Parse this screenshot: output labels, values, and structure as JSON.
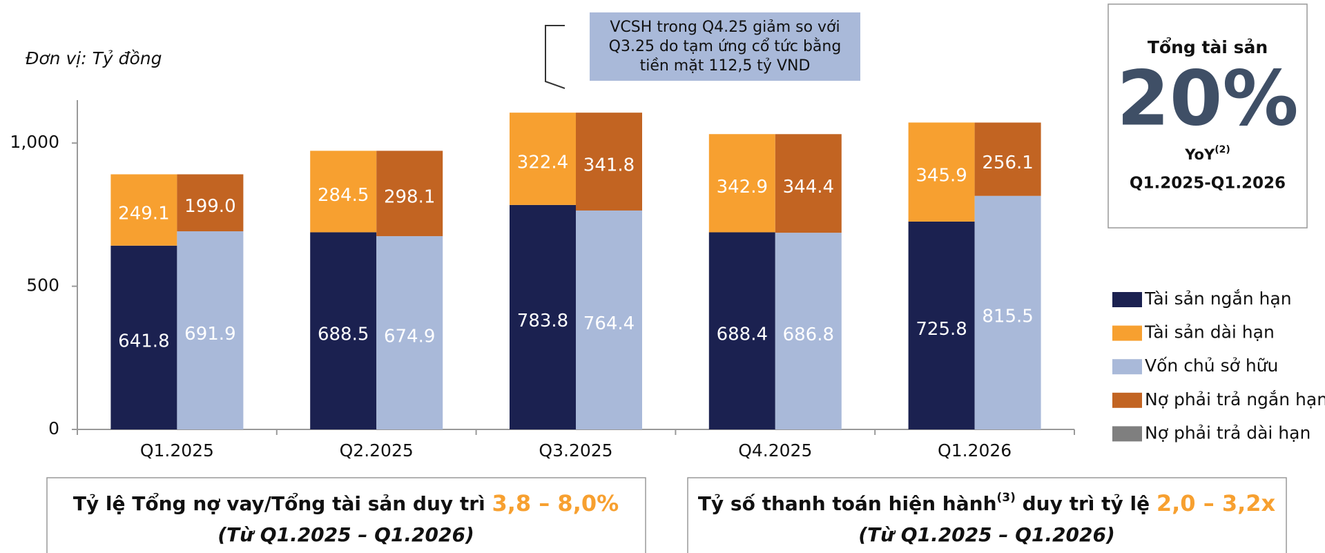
{
  "chart_data": {
    "type": "bar",
    "unit_note": "Đơn vị: Tỷ đồng",
    "categories": [
      "Q1.2025",
      "Q2.2025",
      "Q3.2025",
      "Q4.2025",
      "Q1.2026"
    ],
    "series": [
      {
        "name": "Tài sản ngắn hạn",
        "color": "#1b2150",
        "stack": 1,
        "values": [
          641.8,
          688.5,
          783.8,
          688.4,
          725.8
        ]
      },
      {
        "name": "Tài sản dài hạn",
        "color": "#f7a030",
        "stack": 1,
        "values": [
          249.1,
          284.5,
          322.4,
          342.9,
          345.9
        ]
      },
      {
        "name": "Vốn chủ sở hữu",
        "color": "#a9b9d9",
        "stack": 2,
        "values": [
          691.9,
          674.9,
          764.4,
          686.8,
          815.5
        ]
      },
      {
        "name": "Nợ phải trả ngắn hạn",
        "color": "#c26422",
        "stack": 2,
        "values": [
          199.0,
          298.1,
          341.8,
          344.4,
          256.1
        ],
        "value_labels": [
          "199.0",
          "298.1",
          "341.8",
          "344.4",
          "256.1"
        ]
      },
      {
        "name": "Nợ phải trả dài hạn",
        "color": "#7f7f7f",
        "stack": 2,
        "values": [
          0,
          0,
          0,
          0,
          0
        ]
      }
    ],
    "ylim": [
      0,
      1150
    ],
    "yticks": [
      0,
      500,
      {
        "value": 1000,
        "label": "1,000"
      }
    ],
    "grid": false,
    "legend": "right",
    "annotation": [
      "VCSH trong Q4.25 giảm so với",
      "Q3.25 do tạm ứng cổ tức bằng",
      "tiền mặt 112,5 tỷ VND"
    ]
  },
  "kpi": {
    "title": "Tổng tài sản",
    "value": "20%",
    "label": "YoY",
    "label_sup": "(2)",
    "period": "Q1.2025-Q1.2026"
  },
  "footer_boxes": [
    {
      "text": "Tỷ lệ Tổng nợ vay/Tổng tài sản duy trì ",
      "highlight": "3,8 – 8,0%",
      "sub": "(Từ Q1.2025 – Q1.2026)"
    },
    {
      "text": "Tỷ số thanh toán hiện hành",
      "sup": "(3)",
      "text2": " duy trì tỷ lệ ",
      "highlight": "2,0 – 3,2x",
      "sub": "(Từ Q1.2025 – Q1.2026)"
    }
  ]
}
